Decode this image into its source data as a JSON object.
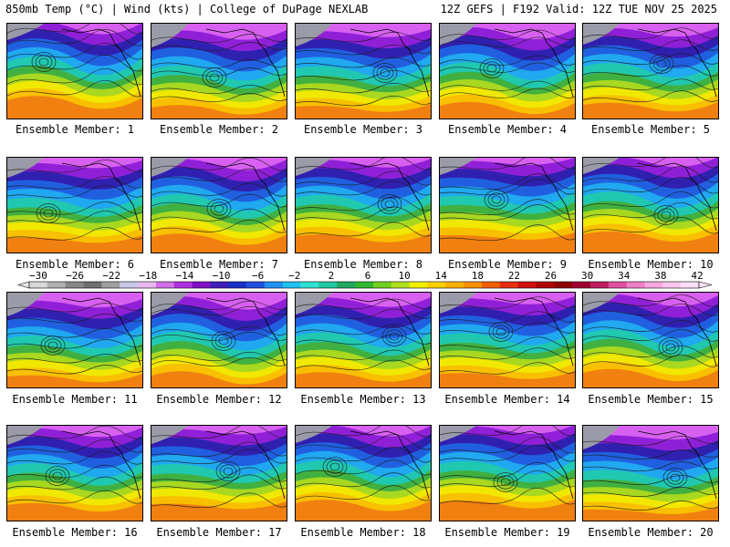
{
  "header": {
    "left": "850mb Temp (°C) | Wind (kts) | College of DuPage NEXLAB",
    "right": "12Z GEFS | F192 Valid: 12Z TUE NOV 25 2025"
  },
  "panels": [
    {
      "caption": "Ensemble Member: 1"
    },
    {
      "caption": "Ensemble Member: 2"
    },
    {
      "caption": "Ensemble Member: 3"
    },
    {
      "caption": "Ensemble Member: 4"
    },
    {
      "caption": "Ensemble Member: 5"
    },
    {
      "caption": "Ensemble Member: 6"
    },
    {
      "caption": "Ensemble Member: 7"
    },
    {
      "caption": "Ensemble Member: 8"
    },
    {
      "caption": "Ensemble Member: 9"
    },
    {
      "caption": "Ensemble Member: 10"
    },
    {
      "caption": "Ensemble Member: 11"
    },
    {
      "caption": "Ensemble Member: 12"
    },
    {
      "caption": "Ensemble Member: 13"
    },
    {
      "caption": "Ensemble Member: 14"
    },
    {
      "caption": "Ensemble Member: 15"
    },
    {
      "caption": "Ensemble Member: 16"
    },
    {
      "caption": "Ensemble Member: 17"
    },
    {
      "caption": "Ensemble Member: 18"
    },
    {
      "caption": "Ensemble Member: 19"
    },
    {
      "caption": "Ensemble Member: 20"
    }
  ],
  "colorbar": {
    "labels": [
      "−30",
      "−26",
      "−22",
      "−18",
      "−14",
      "−10",
      "−6",
      "−2",
      "2",
      "6",
      "10",
      "14",
      "18",
      "22",
      "26",
      "30",
      "34",
      "38",
      "42"
    ],
    "colors": [
      "#d8d8d8",
      "#b0b0b0",
      "#888888",
      "#707070",
      "#a0a0a0",
      "#c8c8e8",
      "#e8b8f0",
      "#d070e8",
      "#b030e0",
      "#8010c8",
      "#4020b8",
      "#1830c8",
      "#2050e0",
      "#2090f0",
      "#20c0f0",
      "#30e0d0",
      "#20c8a0",
      "#20a860",
      "#30b830",
      "#70d020",
      "#b0e020",
      "#f0f000",
      "#f8d000",
      "#f8b000",
      "#f89000",
      "#f06000",
      "#e83010",
      "#d01010",
      "#b00000",
      "#900000",
      "#a00030",
      "#c02060",
      "#e050a0",
      "#f080c8",
      "#f8a8e0",
      "#f8c8f0",
      "#fce0f8"
    ]
  }
}
